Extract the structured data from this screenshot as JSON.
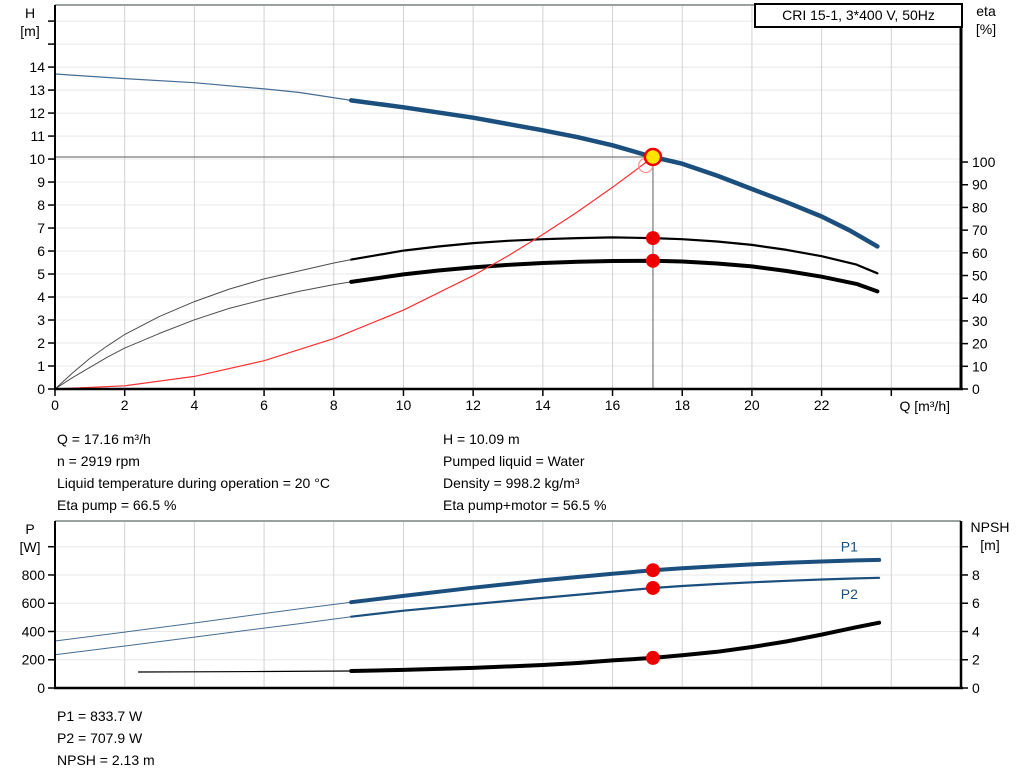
{
  "title_box": "CRI 15-1, 3*400 V, 50Hz",
  "colors": {
    "curve_blue": "#1b4f7e",
    "thin_blue": "#466d93",
    "black": "#000000",
    "thin_gray": "#4d4d4d",
    "system_red": "#ff3030",
    "dot_red": "#ee0000",
    "duty_yellow": "#ffe400",
    "grid_h": "#e8e8e8",
    "grid_v": "#ced3d3",
    "plot_border": "#9ba1a1",
    "crosshair": "#7a7a7a"
  },
  "axis_titles": {
    "h": "H",
    "h_unit": "[m]",
    "eta": "eta",
    "eta_unit": "[%]",
    "q": "Q [m³/h]",
    "p": "P",
    "p_unit": "[W]",
    "npsh": "NPSH",
    "npsh_unit": "[m]"
  },
  "annotations": {
    "left": [
      "Q = 17.16 m³/h",
      "n = 2919 rpm",
      "Liquid temperature during operation = 20 °C",
      "Eta pump = 66.5 %"
    ],
    "right": [
      "H = 10.09 m",
      "Pumped liquid = Water",
      "Density = 998.2 kg/m³",
      "Eta pump+motor = 56.5 %"
    ],
    "bottom": [
      "P1 = 833.7 W",
      "P2 = 707.9 W",
      "NPSH = 2.13 m"
    ]
  },
  "operating_point": {
    "Q_m3h": 17.16,
    "H_m": 10.09,
    "n_rpm": 2919,
    "eta_pump_pct": 66.5,
    "eta_pump_motor_pct": 56.5,
    "P1_W": 833.7,
    "P2_W": 707.9,
    "NPSH_m": 2.13,
    "liquid": "Water",
    "temperature_C": 20,
    "density_kg_m3": 998.2
  },
  "chart_data": [
    {
      "id": "head-efficiency",
      "type": "line",
      "title": "CRI 15-1, 3*400 V, 50Hz",
      "x_axis": {
        "label": "Q [m³/h]",
        "lim": [
          0,
          26
        ],
        "grid": [
          2,
          4,
          6,
          8,
          10,
          12,
          14,
          16,
          18,
          20,
          22,
          24
        ],
        "ticks": [
          0,
          2,
          4,
          6,
          8,
          10,
          12,
          14,
          16,
          18,
          20,
          22,
          24
        ],
        "tick_labels": [
          "0",
          "2",
          "4",
          "6",
          "8",
          "10",
          "12",
          "14",
          "16",
          "18",
          "20",
          "22",
          ""
        ]
      },
      "y_left": {
        "label": "H [m]",
        "lim": [
          0,
          16.7
        ],
        "grid": [
          1,
          2,
          3,
          4,
          5,
          6,
          7,
          8,
          9,
          10,
          11,
          12,
          13,
          14,
          15,
          16
        ],
        "ticks": [
          0,
          1,
          2,
          3,
          4,
          5,
          6,
          7,
          8,
          9,
          10,
          11,
          12,
          13,
          14,
          15,
          16
        ],
        "tick_labels": [
          "0",
          "1",
          "2",
          "3",
          "4",
          "5",
          "6",
          "7",
          "8",
          "9",
          "10",
          "11",
          "12",
          "13",
          "14",
          "",
          ""
        ]
      },
      "y_right": {
        "label": "eta [%]",
        "lim": [
          0,
          169.2
        ],
        "grid": [],
        "ticks": [
          0,
          10,
          20,
          30,
          40,
          50,
          60,
          70,
          80,
          90,
          100
        ],
        "tick_labels": [
          "0",
          "10",
          "20",
          "30",
          "40",
          "50",
          "60",
          "70",
          "80",
          "90",
          "100"
        ]
      },
      "guides": {
        "h": {
          "y": 10.09,
          "x_end": 17.16
        },
        "v": {
          "x": 17.16,
          "y_top": 10.09
        }
      },
      "series": [
        {
          "name": "head-curve-thin",
          "axis": "left",
          "color": "#466d93",
          "width": 1.2,
          "points": [
            [
              0,
              13.7
            ],
            [
              2,
              13.5
            ],
            [
              4,
              13.32
            ],
            [
              6,
              13.05
            ],
            [
              7,
              12.9
            ],
            [
              8.5,
              12.55
            ]
          ]
        },
        {
          "name": "head-curve",
          "axis": "left",
          "color": "#1b4f7e",
          "width": 4.5,
          "points": [
            [
              8.5,
              12.55
            ],
            [
              10,
              12.25
            ],
            [
              12,
              11.8
            ],
            [
              14,
              11.25
            ],
            [
              15,
              10.95
            ],
            [
              16,
              10.6
            ],
            [
              17.16,
              10.09
            ],
            [
              18,
              9.8
            ],
            [
              19,
              9.28
            ],
            [
              20,
              8.7
            ],
            [
              21,
              8.12
            ],
            [
              22,
              7.5
            ],
            [
              22.8,
              6.9
            ],
            [
              23.6,
              6.2
            ]
          ]
        },
        {
          "name": "eta-pump-curve-thin",
          "axis": "right",
          "color": "#4d4d4d",
          "width": 1,
          "points": [
            [
              0,
              0
            ],
            [
              0.5,
              7
            ],
            [
              1,
              13.5
            ],
            [
              1.5,
              19
            ],
            [
              2,
              24
            ],
            [
              3,
              32
            ],
            [
              4,
              38.5
            ],
            [
              5,
              44
            ],
            [
              6,
              48.5
            ],
            [
              7,
              52
            ],
            [
              8,
              55.5
            ],
            [
              8.5,
              57
            ]
          ]
        },
        {
          "name": "eta-pump-curve",
          "axis": "right",
          "color": "#000000",
          "width": 2.2,
          "points": [
            [
              8.5,
              57
            ],
            [
              10,
              61
            ],
            [
              11,
              62.8
            ],
            [
              12,
              64.3
            ],
            [
              13,
              65.3
            ],
            [
              14,
              66
            ],
            [
              15,
              66.5
            ],
            [
              16,
              66.8
            ],
            [
              17.16,
              66.5
            ],
            [
              18,
              66
            ],
            [
              19,
              65
            ],
            [
              20,
              63.5
            ],
            [
              21,
              61.3
            ],
            [
              22,
              58.5
            ],
            [
              23,
              54.8
            ],
            [
              23.6,
              51
            ]
          ]
        },
        {
          "name": "eta-pump-motor-curve-thin",
          "axis": "right",
          "color": "#4d4d4d",
          "width": 1,
          "points": [
            [
              0,
              0
            ],
            [
              0.5,
              5
            ],
            [
              1,
              9.5
            ],
            [
              1.5,
              14
            ],
            [
              2,
              18
            ],
            [
              3,
              24.5
            ],
            [
              4,
              30.5
            ],
            [
              5,
              35.5
            ],
            [
              6,
              39.5
            ],
            [
              7,
              43
            ],
            [
              8,
              46
            ],
            [
              8.5,
              47.2
            ]
          ]
        },
        {
          "name": "eta-pump-motor-curve",
          "axis": "right",
          "color": "#000000",
          "width": 4,
          "points": [
            [
              8.5,
              47.2
            ],
            [
              10,
              50.5
            ],
            [
              11,
              52.2
            ],
            [
              12,
              53.6
            ],
            [
              13,
              54.7
            ],
            [
              14,
              55.5
            ],
            [
              15,
              56.1
            ],
            [
              16,
              56.4
            ],
            [
              17.16,
              56.5
            ],
            [
              18,
              56.2
            ],
            [
              19,
              55.3
            ],
            [
              20,
              54
            ],
            [
              21,
              52
            ],
            [
              22,
              49.5
            ],
            [
              23,
              46.3
            ],
            [
              23.6,
              43
            ]
          ]
        },
        {
          "name": "system-curve",
          "axis": "left",
          "color": "#ff3030",
          "width": 1.2,
          "points": [
            [
              0,
              0
            ],
            [
              2,
              0.14
            ],
            [
              4,
              0.55
            ],
            [
              6,
              1.23
            ],
            [
              8,
              2.19
            ],
            [
              10,
              3.43
            ],
            [
              12,
              4.93
            ],
            [
              13,
              5.79
            ],
            [
              14,
              6.72
            ],
            [
              15,
              7.71
            ],
            [
              16,
              8.77
            ],
            [
              16.6,
              9.44
            ],
            [
              17.16,
              10.09
            ]
          ]
        }
      ],
      "markers": [
        {
          "name": "eta-pump-point",
          "x": 17.16,
          "y": 66.5,
          "axis": "right",
          "r": 7,
          "fill": "#ee0000"
        },
        {
          "name": "eta-pump-motor-point",
          "x": 17.16,
          "y": 56.5,
          "axis": "right",
          "r": 7,
          "fill": "#ee0000"
        },
        {
          "name": "duty-point-ring",
          "x": 16.95,
          "y": 9.72,
          "axis": "left",
          "r": 7,
          "fill": "none",
          "stroke": "#ff9090",
          "sw": 1.2
        },
        {
          "name": "duty-point",
          "x": 17.16,
          "y": 10.09,
          "axis": "left",
          "r": 8,
          "fill": "#ffe400",
          "stroke": "#ee0000",
          "sw": 2.5
        }
      ],
      "labels": []
    },
    {
      "id": "power-npsh",
      "type": "line",
      "x_axis": {
        "label": "",
        "lim": [
          0,
          26
        ],
        "grid": [
          2,
          4,
          6,
          8,
          10,
          12,
          14,
          16,
          18,
          20,
          22,
          24
        ],
        "ticks": [],
        "tick_labels": []
      },
      "y_left": {
        "label": "P [W]",
        "lim": [
          0,
          1182
        ],
        "grid": [
          200,
          400,
          600,
          800,
          1000
        ],
        "ticks": [
          0,
          200,
          400,
          600,
          800,
          1000
        ],
        "tick_labels": [
          "0",
          "200",
          "400",
          "600",
          "800",
          ""
        ]
      },
      "y_right": {
        "label": "NPSH [m]",
        "lim": [
          0,
          11.82
        ],
        "grid": [],
        "ticks": [
          0,
          2,
          4,
          6,
          8,
          10
        ],
        "tick_labels": [
          "0",
          "2",
          "4",
          "6",
          "8",
          ""
        ]
      },
      "series": [
        {
          "name": "p1-curve-thin",
          "axis": "left",
          "color": "#466d93",
          "width": 1,
          "points": [
            [
              0,
              333
            ],
            [
              2,
              396
            ],
            [
              4,
              460
            ],
            [
              6,
              527
            ],
            [
              7,
              560
            ],
            [
              8.5,
              607
            ]
          ]
        },
        {
          "name": "p1-curve",
          "axis": "left",
          "color": "#1b4f7e",
          "width": 4,
          "points": [
            [
              8.5,
              607
            ],
            [
              10,
              652
            ],
            [
              12,
              710
            ],
            [
              14,
              762
            ],
            [
              16,
              808
            ],
            [
              17.16,
              833.7
            ],
            [
              18,
              848
            ],
            [
              19,
              862
            ],
            [
              20,
              875
            ],
            [
              21,
              886
            ],
            [
              22,
              895
            ],
            [
              23,
              903
            ],
            [
              23.65,
              907
            ]
          ]
        },
        {
          "name": "p2-curve-thin",
          "axis": "left",
          "color": "#466d93",
          "width": 1,
          "points": [
            [
              0,
              235
            ],
            [
              2,
              297
            ],
            [
              4,
              360
            ],
            [
              6,
              424
            ],
            [
              7,
              455
            ],
            [
              8.5,
              505
            ]
          ]
        },
        {
          "name": "p2-curve",
          "axis": "left",
          "color": "#1b4f7e",
          "width": 2.2,
          "points": [
            [
              8.5,
              505
            ],
            [
              10,
              547
            ],
            [
              12,
              594
            ],
            [
              14,
              638
            ],
            [
              16,
              682
            ],
            [
              17.16,
              707.9
            ],
            [
              18,
              722
            ],
            [
              19,
              736
            ],
            [
              20,
              748
            ],
            [
              21,
              759
            ],
            [
              22,
              768
            ],
            [
              23,
              776
            ],
            [
              23.65,
              780
            ]
          ]
        },
        {
          "name": "npsh-curve-thin",
          "axis": "right",
          "color": "#000000",
          "width": 1.2,
          "points": [
            [
              2.4,
              1.13
            ],
            [
              4,
              1.15
            ],
            [
              6,
              1.17
            ],
            [
              8.5,
              1.2
            ]
          ]
        },
        {
          "name": "npsh-curve",
          "axis": "right",
          "color": "#000000",
          "width": 4,
          "points": [
            [
              8.5,
              1.2
            ],
            [
              10,
              1.28
            ],
            [
              12,
              1.42
            ],
            [
              14,
              1.63
            ],
            [
              15,
              1.77
            ],
            [
              16,
              1.95
            ],
            [
              17.16,
              2.13
            ],
            [
              18,
              2.32
            ],
            [
              19,
              2.56
            ],
            [
              20,
              2.9
            ],
            [
              21,
              3.3
            ],
            [
              22,
              3.78
            ],
            [
              23,
              4.3
            ],
            [
              23.65,
              4.62
            ]
          ]
        }
      ],
      "markers": [
        {
          "name": "p1-point",
          "x": 17.16,
          "y": 833.7,
          "axis": "left",
          "r": 7,
          "fill": "#ee0000"
        },
        {
          "name": "p2-point",
          "x": 17.16,
          "y": 707.9,
          "axis": "left",
          "r": 7,
          "fill": "#ee0000"
        },
        {
          "name": "npsh-point",
          "x": 17.16,
          "y": 2.13,
          "axis": "right",
          "r": 7,
          "fill": "#ee0000"
        }
      ],
      "labels": [
        {
          "name": "p1-curve-label",
          "text": "P1",
          "x": 22.55,
          "y": 1000,
          "axis": "left",
          "color": "#1b4f7e"
        },
        {
          "name": "p2-curve-label",
          "text": "P2",
          "x": 22.55,
          "y": 665,
          "axis": "left",
          "color": "#1b4f7e"
        }
      ]
    }
  ]
}
